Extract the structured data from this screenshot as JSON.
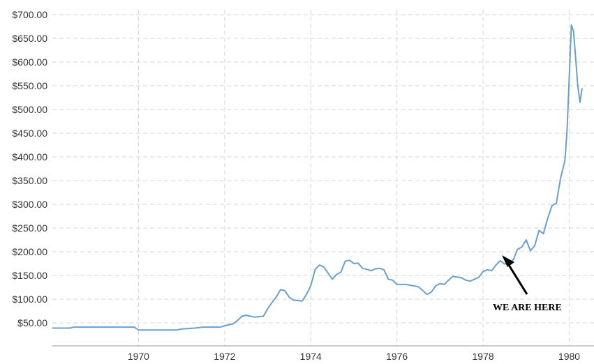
{
  "chart_data": {
    "type": "line",
    "title": "",
    "xlabel": "",
    "ylabel": "",
    "xlim": [
      1968.0,
      1980.3
    ],
    "ylim": [
      0,
      700
    ],
    "grid": true,
    "y_tick_labels": [
      "$50.00",
      "$100.00",
      "$150.00",
      "$200.00",
      "$250.00",
      "$300.00",
      "$350.00",
      "$400.00",
      "$450.00",
      "$500.00",
      "$550.00",
      "$600.00",
      "$650.00",
      "$700.00"
    ],
    "y_ticks": [
      50,
      100,
      150,
      200,
      250,
      300,
      350,
      400,
      450,
      500,
      550,
      600,
      650,
      700
    ],
    "x_tick_labels": [
      "1970",
      "1972",
      "1974",
      "1976",
      "1978",
      "1980"
    ],
    "x_ticks": [
      1970,
      1972,
      1974,
      1976,
      1978,
      1980
    ],
    "line_color": "#6a9fcf",
    "series": [
      {
        "x": [
          1968.0,
          1968.4,
          1968.5,
          1969.0,
          1969.5,
          1969.9,
          1970.0,
          1970.5,
          1970.9,
          1971.0,
          1971.3,
          1971.5,
          1971.9,
          1972.0,
          1972.2,
          1972.3,
          1972.4,
          1972.5,
          1972.6,
          1972.7,
          1972.9,
          1973.0,
          1973.1,
          1973.2,
          1973.3,
          1973.4,
          1973.5,
          1973.6,
          1973.8,
          1973.9,
          1974.0,
          1974.1,
          1974.2,
          1974.3,
          1974.4,
          1974.5,
          1974.6,
          1974.7,
          1974.8,
          1974.9,
          1975.0,
          1975.1,
          1975.2,
          1975.3,
          1975.4,
          1975.5,
          1975.6,
          1975.7,
          1975.8,
          1975.9,
          1976.0,
          1976.2,
          1976.4,
          1976.5,
          1976.6,
          1976.7,
          1976.8,
          1976.9,
          1977.0,
          1977.1,
          1977.2,
          1977.3,
          1977.5,
          1977.6,
          1977.7,
          1977.9,
          1978.0,
          1978.1,
          1978.2,
          1978.3,
          1978.4,
          1978.5,
          1978.6,
          1978.7,
          1978.8,
          1978.9,
          1979.0,
          1979.1,
          1979.2,
          1979.3,
          1979.4,
          1979.5,
          1979.6,
          1979.7,
          1979.8,
          1979.9,
          1979.95,
          1980.05,
          1980.1,
          1980.2,
          1980.25,
          1980.3
        ],
        "y": [
          39,
          39,
          41,
          41,
          41,
          41,
          35,
          35,
          35,
          37,
          39,
          41,
          41,
          44,
          48,
          55,
          64,
          66,
          64,
          62,
          64,
          80,
          93,
          105,
          120,
          118,
          104,
          98,
          96,
          110,
          128,
          162,
          172,
          168,
          155,
          142,
          152,
          157,
          180,
          182,
          175,
          176,
          165,
          163,
          160,
          164,
          165,
          162,
          142,
          140,
          131,
          131,
          128,
          126,
          118,
          110,
          115,
          128,
          133,
          131,
          140,
          148,
          145,
          140,
          138,
          146,
          158,
          162,
          160,
          172,
          181,
          174,
          177,
          183,
          205,
          210,
          225,
          202,
          213,
          245,
          238,
          270,
          297,
          302,
          355,
          392,
          455,
          678,
          665,
          550,
          515,
          545
        ]
      }
    ],
    "annotations": [
      {
        "text": "WE ARE HERE",
        "x": 1978.3,
        "y": 200
      }
    ]
  }
}
